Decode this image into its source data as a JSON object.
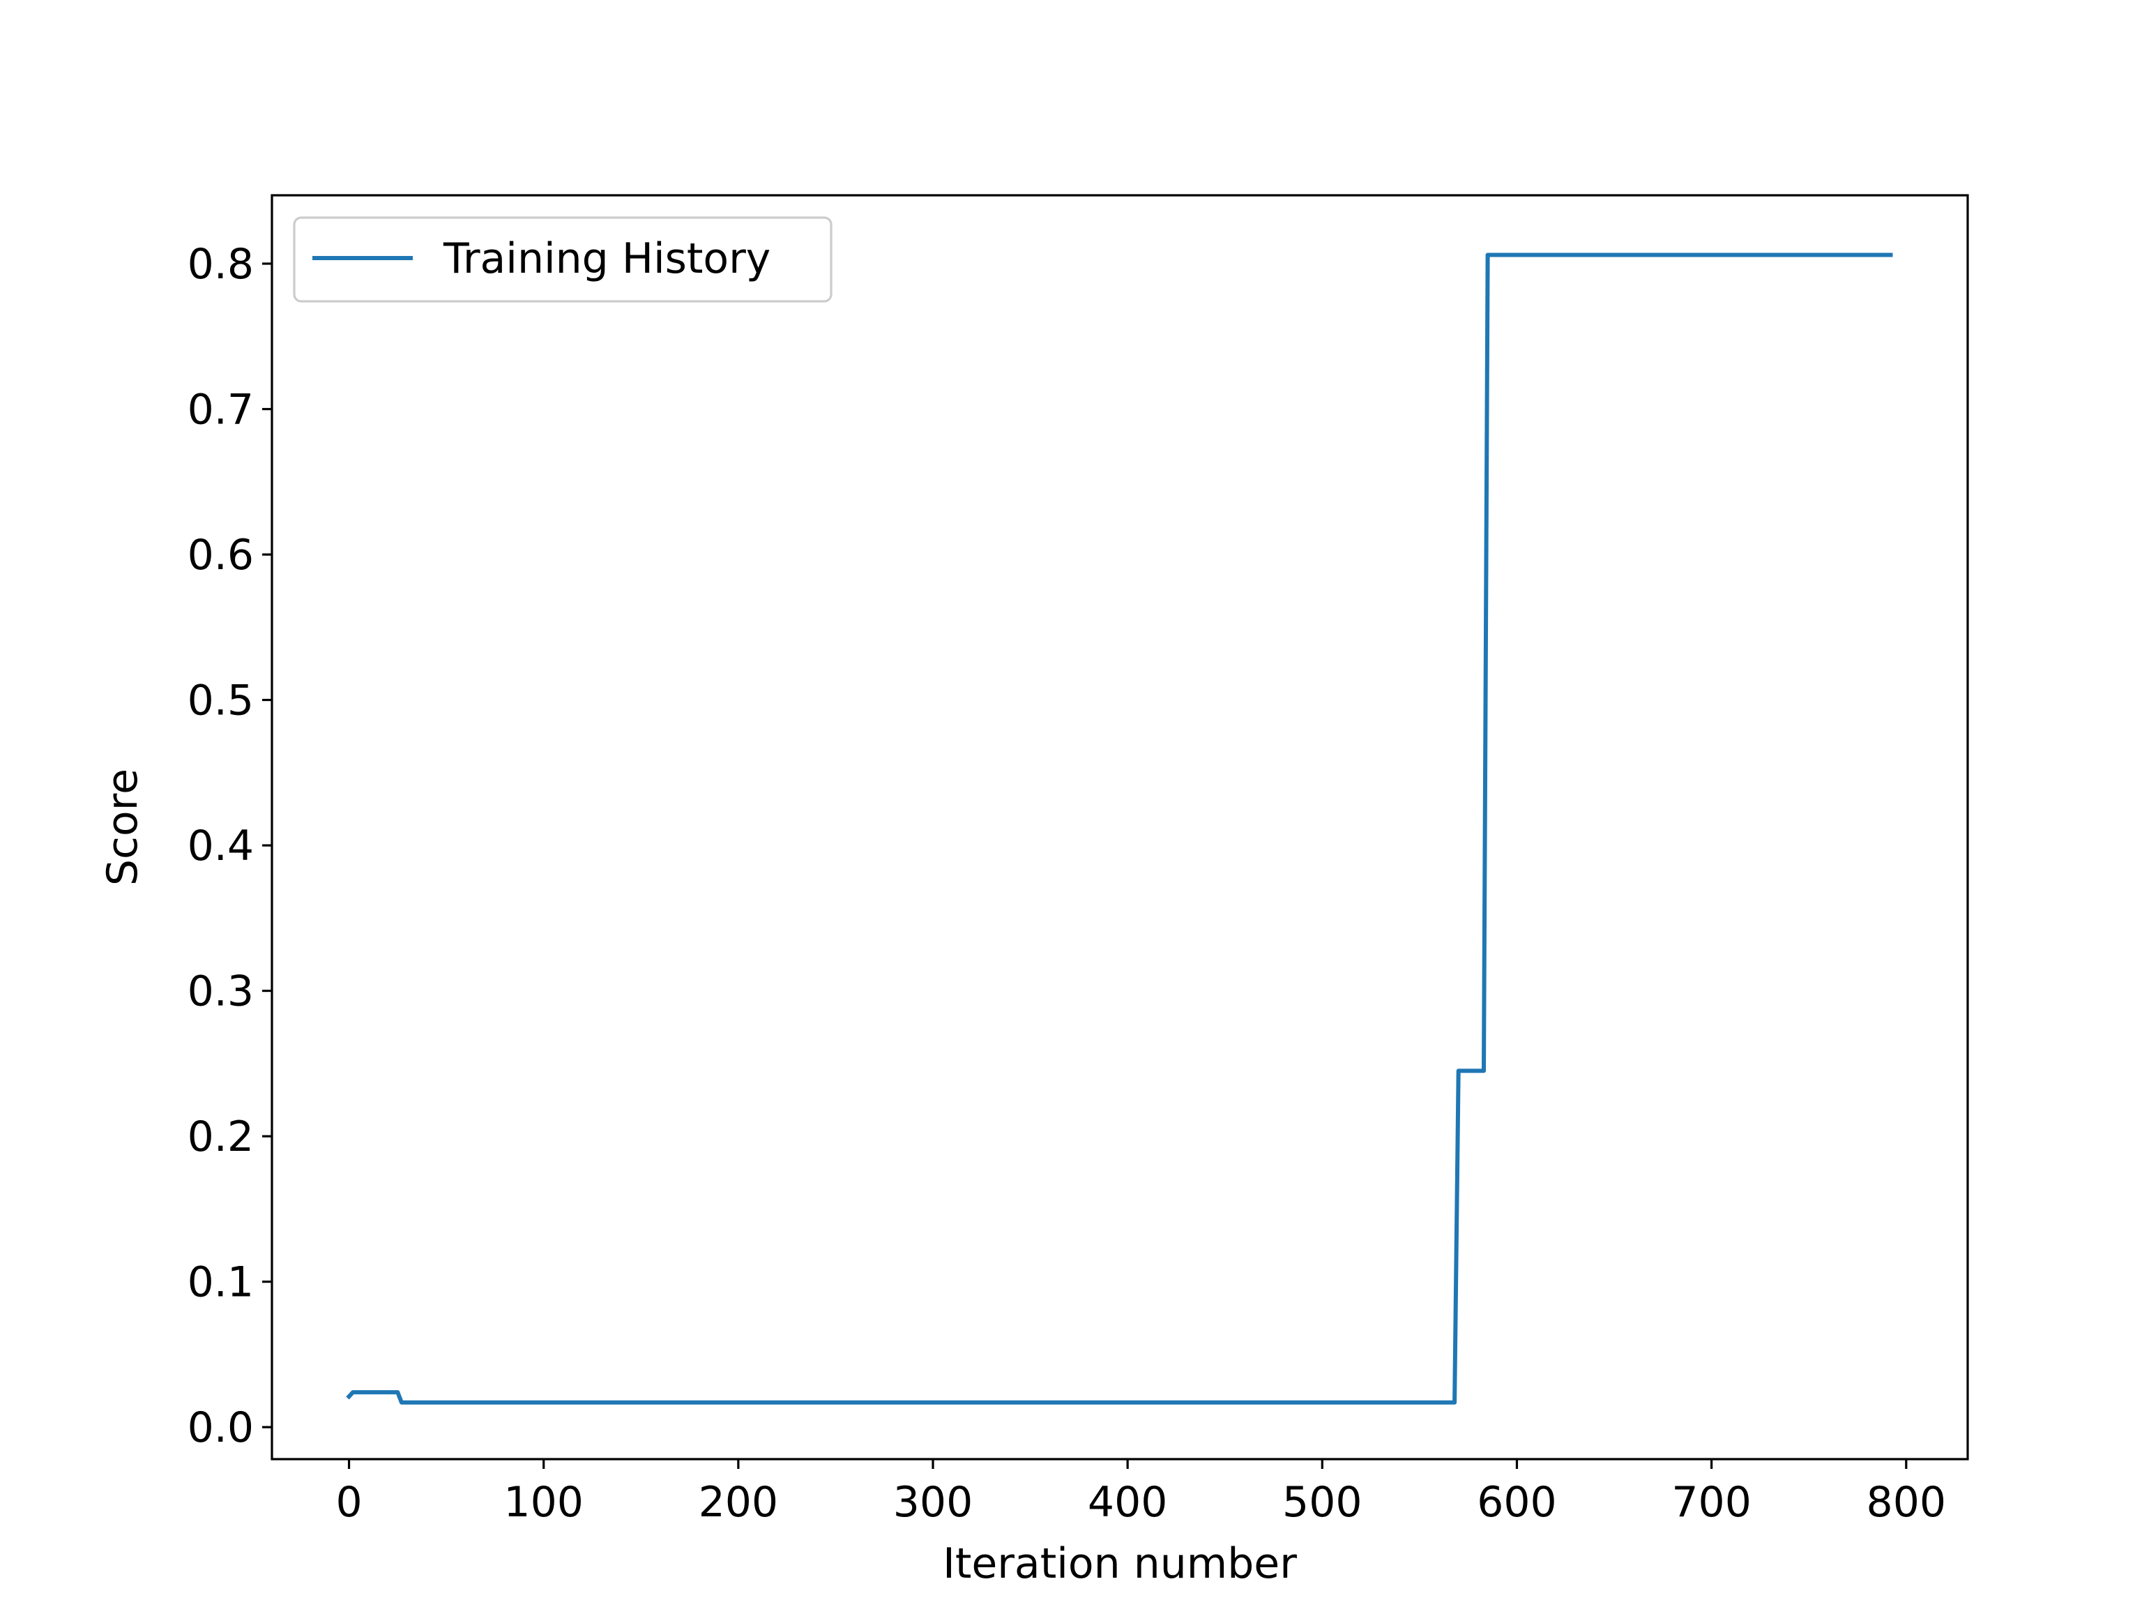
{
  "chart_data": {
    "type": "line",
    "title": "",
    "xlabel": "Iteration number",
    "ylabel": "Score",
    "xlim": [
      -39.6,
      831.6
    ],
    "ylim": [
      -0.022,
      0.847
    ],
    "xticks": [
      0,
      100,
      200,
      300,
      400,
      500,
      600,
      700,
      800
    ],
    "xtick_labels": [
      "0",
      "100",
      "200",
      "300",
      "400",
      "500",
      "600",
      "700",
      "800"
    ],
    "yticks": [
      0.0,
      0.1,
      0.2,
      0.3,
      0.4,
      0.5,
      0.6,
      0.7,
      0.8
    ],
    "ytick_labels": [
      "0.0",
      "0.1",
      "0.2",
      "0.3",
      "0.4",
      "0.5",
      "0.6",
      "0.7",
      "0.8"
    ],
    "grid": false,
    "legend": "upper left",
    "series": [
      {
        "name": "Training History",
        "color": "#1f77b4",
        "x": [
          0,
          2,
          25,
          27,
          568,
          570,
          583,
          585,
          792
        ],
        "y": [
          0.021,
          0.024,
          0.024,
          0.017,
          0.017,
          0.245,
          0.245,
          0.806,
          0.806
        ]
      }
    ]
  }
}
